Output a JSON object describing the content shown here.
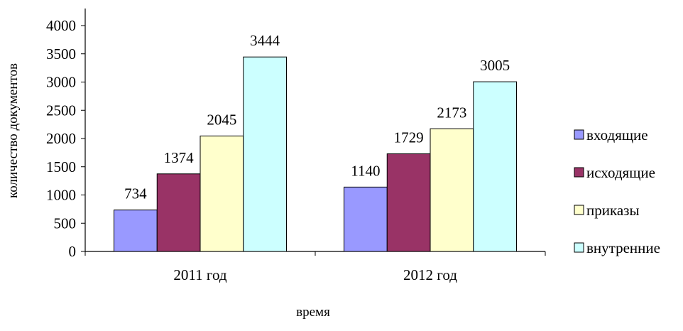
{
  "chart_data": {
    "type": "bar",
    "categories": [
      "2011 год",
      "2012 год"
    ],
    "series": [
      {
        "name": "входящие",
        "values": [
          734,
          1140
        ],
        "color": "#9999ff"
      },
      {
        "name": "исходящие",
        "values": [
          1374,
          1729
        ],
        "color": "#993366"
      },
      {
        "name": "приказы",
        "values": [
          2045,
          2173
        ],
        "color": "#ffffcc"
      },
      {
        "name": "внутренние",
        "values": [
          3444,
          3005
        ],
        "color": "#ccffff"
      }
    ],
    "ylim": [
      0,
      4000
    ],
    "yticks": [
      0,
      500,
      1000,
      1500,
      2000,
      2500,
      3000,
      3500,
      4000
    ],
    "ylabel": "количество документов",
    "xlabel": "время",
    "legend": "right",
    "grid": false
  }
}
